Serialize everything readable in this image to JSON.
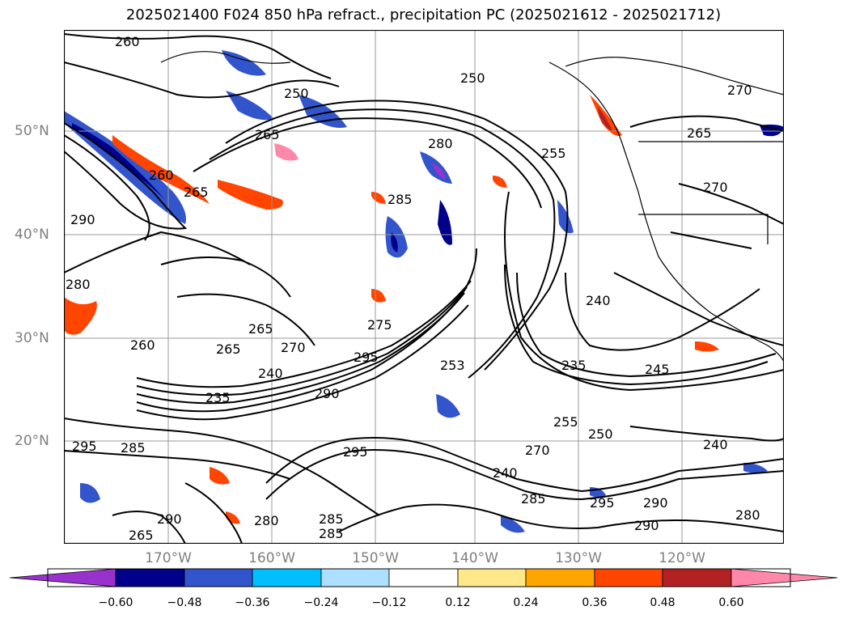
{
  "title": "2025021400 F024 850 hPa refract., precipitation PC (2025021612 - 2025021712)",
  "lat_labels": [
    "50°N",
    "40°N",
    "30°N",
    "20°N"
  ],
  "lon_labels": [
    "170°W",
    "160°W",
    "150°W",
    "140°W",
    "130°W",
    "120°W"
  ],
  "colorbar": {
    "ticks": [
      "−0.60",
      "−0.48",
      "−0.36",
      "−0.24",
      "−0.12",
      "0.12",
      "0.24",
      "0.36",
      "0.48",
      "0.60"
    ],
    "colors": [
      "#9932CC",
      "#00008B",
      "#3355CC",
      "#00BFFF",
      "#ADE0FF",
      "#FFFFFF",
      "#FFE88A",
      "#FFA500",
      "#FF4500",
      "#B22222",
      "#FF88AA"
    ]
  },
  "contour_labels": [
    "260",
    "250",
    "265",
    "270",
    "280",
    "255",
    "265",
    "250",
    "260",
    "265",
    "290",
    "280",
    "285",
    "275",
    "265",
    "240",
    "270",
    "260",
    "265",
    "270",
    "295",
    "240",
    "235",
    "290",
    "253",
    "235",
    "245",
    "255",
    "250",
    "240",
    "295",
    "285",
    "295",
    "290",
    "285",
    "240",
    "270",
    "285",
    "295",
    "280",
    "290",
    "280",
    "290",
    "285",
    "265"
  ],
  "colors": {
    "map_bg": "#ffffff",
    "grid": "#999999",
    "contour": "#000000",
    "coast": "#000000",
    "tick_label": "#7f7f7f"
  }
}
